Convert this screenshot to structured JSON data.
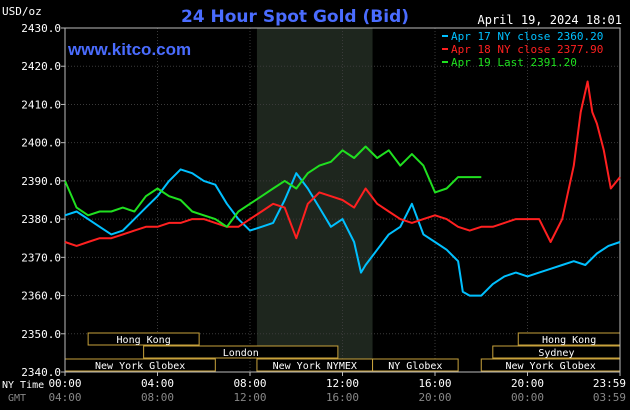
{
  "chart_data": {
    "type": "line",
    "title": "24 Hour Spot Gold (Bid)",
    "subtitle": "April 19, 2024 18:01",
    "site": "www.kitco.com",
    "unit_label": "USD/oz",
    "ylim": [
      2340,
      2430
    ],
    "xlim_hours": [
      0,
      24
    ],
    "y_ticks": [
      "2430.0",
      "2420.0",
      "2410.0",
      "2400.0",
      "2390.0",
      "2380.0",
      "2370.0",
      "2360.0",
      "2350.0",
      "2340.0"
    ],
    "y_tick_values": [
      2430,
      2420,
      2410,
      2400,
      2390,
      2380,
      2370,
      2360,
      2350,
      2340
    ],
    "x_ticks_ny": [
      "00:00",
      "04:00",
      "08:00",
      "12:00",
      "16:00",
      "20:00",
      "23:59"
    ],
    "x_ticks_gmt": [
      "04:00",
      "08:00",
      "12:00",
      "16:00",
      "20:00",
      "00:00",
      "03:59"
    ],
    "x_tick_hours": [
      0,
      4,
      8,
      12,
      16,
      20,
      24
    ],
    "x_row_label_ny": "NY Time",
    "x_row_label_gmt": "GMT",
    "shaded_hours": [
      8.3,
      13.3
    ],
    "legend": [
      {
        "text": "Apr 17 NY close 2360.20",
        "color": "#00c0ff"
      },
      {
        "text": "Apr 18 NY close 2377.90",
        "color": "#ff2020"
      },
      {
        "text": "Apr 19 Last 2391.20",
        "color": "#20e020"
      }
    ],
    "series": [
      {
        "name": "Apr 17",
        "color": "#00c0ff",
        "x": [
          0,
          0.5,
          1,
          1.5,
          2,
          2.5,
          3,
          3.5,
          4,
          4.5,
          5,
          5.5,
          6,
          6.5,
          7,
          7.5,
          8,
          8.5,
          9,
          9.5,
          10,
          10.5,
          11,
          11.5,
          12,
          12.5,
          12.8,
          13,
          13.5,
          14,
          14.5,
          15,
          15.5,
          16,
          16.5,
          17,
          17.2,
          17.5,
          18,
          18.5,
          19,
          19.5,
          20,
          20.5,
          21,
          21.5,
          22,
          22.5,
          23,
          23.5,
          24
        ],
        "y": [
          2381,
          2382,
          2380,
          2378,
          2376,
          2377,
          2380,
          2383,
          2386,
          2390,
          2393,
          2392,
          2390,
          2389,
          2384,
          2380,
          2377,
          2378,
          2379,
          2385,
          2392,
          2388,
          2383,
          2378,
          2380,
          2374,
          2366,
          2368,
          2372,
          2376,
          2378,
          2384,
          2376,
          2374,
          2372,
          2369,
          2361,
          2360,
          2360,
          2363,
          2365,
          2366,
          2365,
          2366,
          2367,
          2368,
          2369,
          2368,
          2371,
          2373,
          2374
        ]
      },
      {
        "name": "Apr 18",
        "color": "#ff2020",
        "x": [
          0,
          0.5,
          1,
          1.5,
          2,
          2.5,
          3,
          3.5,
          4,
          4.5,
          5,
          5.5,
          6,
          6.5,
          7,
          7.5,
          8,
          8.5,
          9,
          9.5,
          10,
          10.5,
          11,
          11.5,
          12,
          12.5,
          13,
          13.5,
          14,
          14.5,
          15,
          15.5,
          16,
          16.5,
          17,
          17.5,
          18,
          18.5,
          19,
          19.5,
          20,
          20.5,
          21,
          21.5,
          22,
          22.3,
          22.6,
          22.8,
          23,
          23.3,
          23.6,
          24
        ],
        "y": [
          2374,
          2373,
          2374,
          2375,
          2375,
          2376,
          2377,
          2378,
          2378,
          2379,
          2379,
          2380,
          2380,
          2379,
          2378,
          2378,
          2380,
          2382,
          2384,
          2383,
          2375,
          2384,
          2387,
          2386,
          2385,
          2383,
          2388,
          2384,
          2382,
          2380,
          2379,
          2380,
          2381,
          2380,
          2378,
          2377,
          2378,
          2378,
          2379,
          2380,
          2380,
          2380,
          2374,
          2380,
          2394,
          2408,
          2416,
          2408,
          2405,
          2398,
          2388,
          2391
        ]
      },
      {
        "name": "Apr 19",
        "color": "#20e020",
        "x": [
          0,
          0.5,
          1,
          1.5,
          2,
          2.5,
          3,
          3.5,
          4,
          4.5,
          5,
          5.5,
          6,
          6.5,
          7,
          7.5,
          8,
          8.5,
          9,
          9.5,
          10,
          10.5,
          11,
          11.5,
          12,
          12.5,
          13,
          13.5,
          14,
          14.5,
          15,
          15.5,
          16,
          16.5,
          17,
          17.5,
          18
        ],
        "y": [
          2390,
          2383,
          2381,
          2382,
          2382,
          2383,
          2382,
          2386,
          2388,
          2386,
          2385,
          2382,
          2381,
          2380,
          2378,
          2382,
          2384,
          2386,
          2388,
          2390,
          2388,
          2392,
          2394,
          2395,
          2398,
          2396,
          2399,
          2396,
          2398,
          2394,
          2397,
          2394,
          2387,
          2388,
          2391,
          2391,
          2391
        ]
      }
    ],
    "sessions": [
      {
        "label": "Hong Kong",
        "row": 0,
        "start": 1,
        "end": 5.8
      },
      {
        "label": "Hong Kong",
        "row": 0,
        "start": 19.6,
        "end": 24
      },
      {
        "label": "London",
        "row": 1,
        "start": 3.4,
        "end": 11.8
      },
      {
        "label": "Sydney",
        "row": 1,
        "start": 18.5,
        "end": 24
      },
      {
        "label": "",
        "row": 2,
        "start": 0,
        "end": 3.4
      },
      {
        "label": "New York Globex",
        "row": 2,
        "start": 0,
        "end": 6.5
      },
      {
        "label": "New York NYMEX",
        "row": 2,
        "start": 8.3,
        "end": 13.3
      },
      {
        "label": "NY Globex",
        "row": 2,
        "start": 13.3,
        "end": 17
      },
      {
        "label": "New York Globex",
        "row": 2,
        "start": 18,
        "end": 24
      }
    ]
  }
}
